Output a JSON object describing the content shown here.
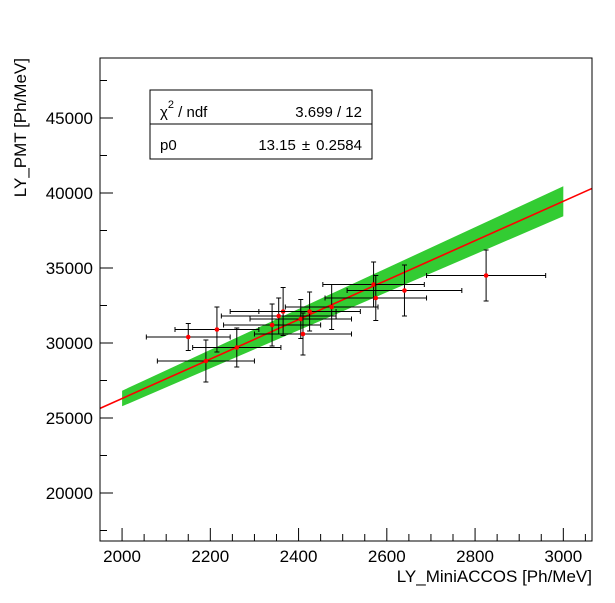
{
  "chart_data": {
    "type": "scatter",
    "title": "",
    "xlabel": "LY_MiniACCOS [Ph/MeV]",
    "ylabel": "LY_PMT [Ph/MeV]",
    "xlim": [
      1950,
      3065
    ],
    "ylim": [
      16800,
      49000
    ],
    "x_ticks": [
      2000,
      2200,
      2400,
      2600,
      2800,
      3000
    ],
    "y_ticks": [
      20000,
      25000,
      30000,
      35000,
      40000,
      45000
    ],
    "x_tick_labels": [
      "2000",
      "2200",
      "2400",
      "2600",
      "2800",
      "3000"
    ],
    "y_tick_labels": [
      "20000",
      "25000",
      "30000",
      "35000",
      "40000",
      "45000"
    ],
    "grid": false,
    "colors": {
      "points": "#ff0000",
      "errors": "#000000",
      "fit": "#ff0000",
      "band": "#33cc33"
    },
    "series": [
      {
        "points": [
          {
            "x": 2150,
            "y": 30400,
            "xerr": 95,
            "yerr": 900
          },
          {
            "x": 2190,
            "y": 28800,
            "xerr": 110,
            "yerr": 1400
          },
          {
            "x": 2215,
            "y": 30900,
            "xerr": 95,
            "yerr": 1500
          },
          {
            "x": 2260,
            "y": 29700,
            "xerr": 100,
            "yerr": 1300
          },
          {
            "x": 2340,
            "y": 31200,
            "xerr": 110,
            "yerr": 1400
          },
          {
            "x": 2355,
            "y": 31800,
            "xerr": 130,
            "yerr": 1200
          },
          {
            "x": 2365,
            "y": 32100,
            "xerr": 120,
            "yerr": 1600
          },
          {
            "x": 2405,
            "y": 31600,
            "xerr": 115,
            "yerr": 1300
          },
          {
            "x": 2410,
            "y": 30600,
            "xerr": 110,
            "yerr": 1400
          },
          {
            "x": 2425,
            "y": 32100,
            "xerr": 115,
            "yerr": 1300
          },
          {
            "x": 2475,
            "y": 32400,
            "xerr": 105,
            "yerr": 1500
          },
          {
            "x": 2570,
            "y": 33900,
            "xerr": 115,
            "yerr": 1500
          },
          {
            "x": 2575,
            "y": 33000,
            "xerr": 115,
            "yerr": 1500
          },
          {
            "x": 2640,
            "y": 33500,
            "xerr": 130,
            "yerr": 1700
          },
          {
            "x": 2825,
            "y": 34500,
            "xerr": 135,
            "yerr": 1700
          }
        ]
      }
    ],
    "fit": {
      "p0": 13.15,
      "p0_err": 0.2584,
      "x_range": [
        1950,
        3065
      ]
    },
    "band": {
      "x_range": [
        2000,
        3000
      ],
      "halfwidth_at_2000": 520,
      "halfwidth_at_3000": 1000
    },
    "stats_box": {
      "chi2_label": "χ",
      "chi2_sup": "2",
      "ndf_label": " / ndf",
      "chi2_value": "3.699 / 12",
      "p0_label": "p0",
      "p0_value": "13.15",
      "pm": "±",
      "p0_error": "0.2584"
    }
  }
}
